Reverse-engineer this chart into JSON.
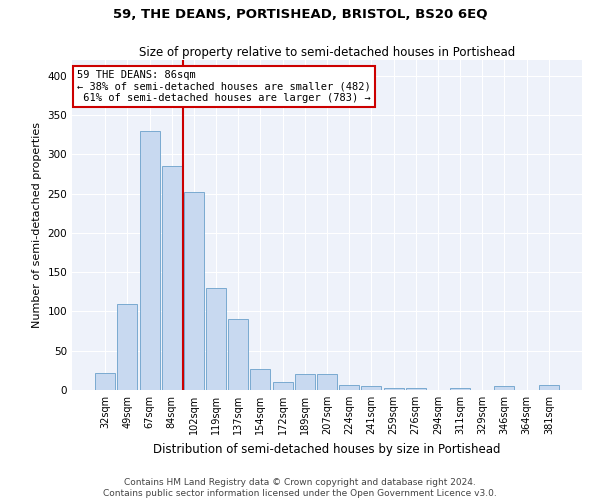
{
  "title": "59, THE DEANS, PORTISHEAD, BRISTOL, BS20 6EQ",
  "subtitle": "Size of property relative to semi-detached houses in Portishead",
  "xlabel": "Distribution of semi-detached houses by size in Portishead",
  "ylabel": "Number of semi-detached properties",
  "categories": [
    "32sqm",
    "49sqm",
    "67sqm",
    "84sqm",
    "102sqm",
    "119sqm",
    "137sqm",
    "154sqm",
    "172sqm",
    "189sqm",
    "207sqm",
    "224sqm",
    "241sqm",
    "259sqm",
    "276sqm",
    "294sqm",
    "311sqm",
    "329sqm",
    "346sqm",
    "364sqm",
    "381sqm"
  ],
  "values": [
    22,
    110,
    330,
    285,
    252,
    130,
    90,
    27,
    10,
    20,
    20,
    6,
    5,
    2,
    3,
    0,
    3,
    0,
    5,
    0,
    6
  ],
  "bar_color": "#c8d9f0",
  "bar_edge_color": "#7aaad0",
  "red_line_index": 3,
  "marker_label": "59 THE DEANS: 86sqm",
  "pct_smaller": 38,
  "count_smaller": 482,
  "pct_larger": 61,
  "count_larger": 783,
  "annotation_box_color": "#ffffff",
  "annotation_box_edge": "#cc0000",
  "line_color": "#cc0000",
  "ylim": [
    0,
    420
  ],
  "yticks": [
    0,
    50,
    100,
    150,
    200,
    250,
    300,
    350,
    400
  ],
  "footer1": "Contains HM Land Registry data © Crown copyright and database right 2024.",
  "footer2": "Contains public sector information licensed under the Open Government Licence v3.0.",
  "background_color": "#eef2fa",
  "grid_color": "#ffffff",
  "title_fontsize": 9.5,
  "subtitle_fontsize": 8.5,
  "ylabel_fontsize": 8,
  "xlabel_fontsize": 8.5,
  "tick_fontsize": 7,
  "footer_fontsize": 6.5,
  "annot_fontsize": 7.5
}
